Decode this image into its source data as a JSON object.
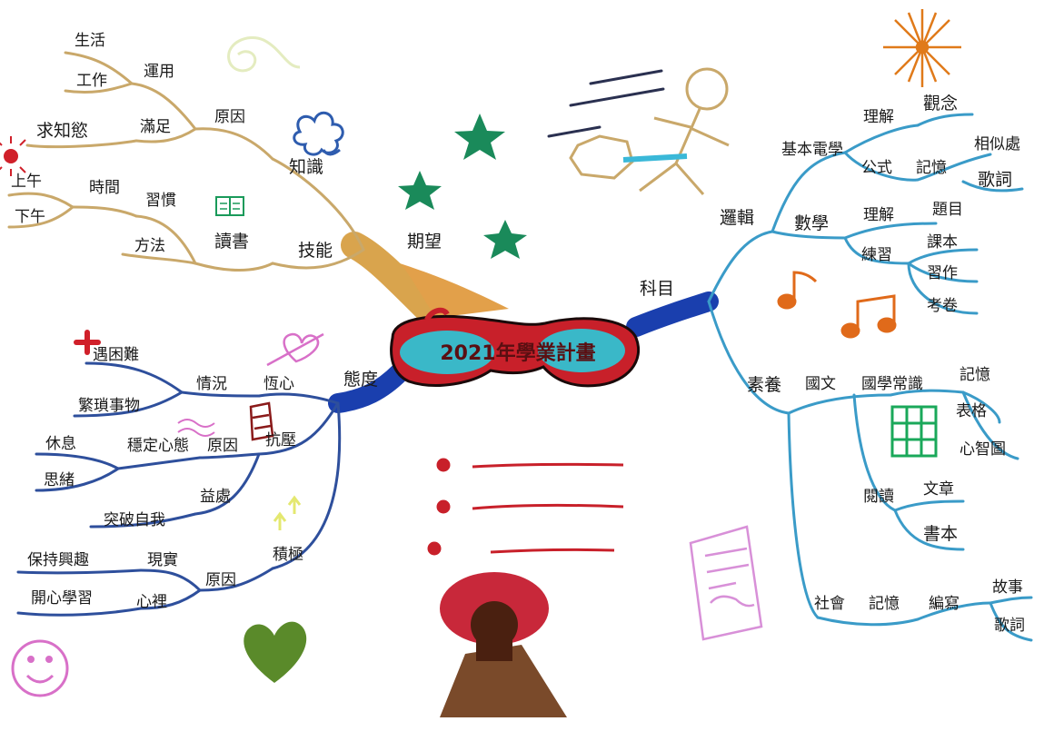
{
  "center": {
    "title": "2021年學業計畫"
  },
  "branches": {
    "expectation": {
      "label": "期望",
      "color": "#c9a86a",
      "children": [
        {
          "label": "知識",
          "children": [
            {
              "label": "原因",
              "children": [
                {
                  "label": "運用",
                  "children": [
                    {
                      "label": "生活"
                    },
                    {
                      "label": "工作"
                    }
                  ]
                },
                {
                  "label": "滿足",
                  "children": [
                    {
                      "label": "求知慾"
                    }
                  ]
                }
              ]
            }
          ]
        },
        {
          "label": "技能",
          "children": [
            {
              "label": "讀書",
              "children": [
                {
                  "label": "習慣",
                  "children": [
                    {
                      "label": "時間",
                      "children": [
                        {
                          "label": "上午"
                        },
                        {
                          "label": "下午"
                        }
                      ]
                    }
                  ]
                },
                {
                  "label": "方法"
                }
              ]
            }
          ]
        }
      ]
    },
    "subject": {
      "label": "科目",
      "color": "#3a9bc8",
      "children": [
        {
          "label": "邏輯",
          "children": [
            {
              "label": "基本電學",
              "children": [
                {
                  "label": "理解",
                  "children": [
                    {
                      "label": "觀念"
                    }
                  ]
                },
                {
                  "label": "公式",
                  "children": [
                    {
                      "label": "記憶",
                      "children": [
                        {
                          "label": "相似處"
                        },
                        {
                          "label": "歌詞"
                        }
                      ]
                    }
                  ]
                }
              ]
            },
            {
              "label": "數學",
              "children": [
                {
                  "label": "理解",
                  "children": [
                    {
                      "label": "題目"
                    }
                  ]
                },
                {
                  "label": "練習",
                  "children": [
                    {
                      "label": "課本"
                    },
                    {
                      "label": "習作"
                    },
                    {
                      "label": "考卷"
                    }
                  ]
                }
              ]
            }
          ]
        },
        {
          "label": "素養",
          "children": [
            {
              "label": "國文",
              "children": [
                {
                  "label": "國學常識",
                  "children": [
                    {
                      "label": "記憶",
                      "children": [
                        {
                          "label": "表格"
                        },
                        {
                          "label": "心智圖"
                        }
                      ]
                    }
                  ]
                },
                {
                  "label": "閱讀",
                  "children": [
                    {
                      "label": "文章"
                    },
                    {
                      "label": "書本"
                    }
                  ]
                }
              ]
            },
            {
              "label": "社會",
              "children": [
                {
                  "label": "記憶",
                  "children": [
                    {
                      "label": "編寫",
                      "children": [
                        {
                          "label": "故事"
                        },
                        {
                          "label": "歌詞"
                        }
                      ]
                    }
                  ]
                }
              ]
            }
          ]
        }
      ]
    },
    "attitude": {
      "label": "態度",
      "color": "#2e4f9c",
      "children": [
        {
          "label": "恆心",
          "children": [
            {
              "label": "情況",
              "children": [
                {
                  "label": "遇困難"
                },
                {
                  "label": "繁瑣事物"
                }
              ]
            }
          ]
        },
        {
          "label": "抗壓",
          "children": [
            {
              "label": "原因",
              "children": [
                {
                  "label": "穩定心態",
                  "children": [
                    {
                      "label": "休息"
                    },
                    {
                      "label": "思緒"
                    }
                  ]
                }
              ]
            },
            {
              "label": "益處",
              "children": [
                {
                  "label": "突破自我"
                }
              ]
            }
          ]
        },
        {
          "label": "積極",
          "children": [
            {
              "label": "原因",
              "children": [
                {
                  "label": "現實",
                  "children": [
                    {
                      "label": "保持興趣"
                    }
                  ]
                },
                {
                  "label": "心裡",
                  "children": [
                    {
                      "label": "開心學習"
                    }
                  ]
                }
              ]
            }
          ]
        }
      ]
    }
  },
  "decorations": {
    "stars": "#1a8a5a",
    "sun": "#e07a1a",
    "music_notes": "#e06a1a",
    "heart": "#5a8a2a",
    "volcano_top": "#c8283a",
    "volcano_base": "#5a2a1a",
    "glasses": "#c8202a",
    "lens": "#3ab8c8",
    "table_grid": "#1aa85a",
    "smiley": "#d870c8",
    "list_lines": "#c8202a"
  }
}
